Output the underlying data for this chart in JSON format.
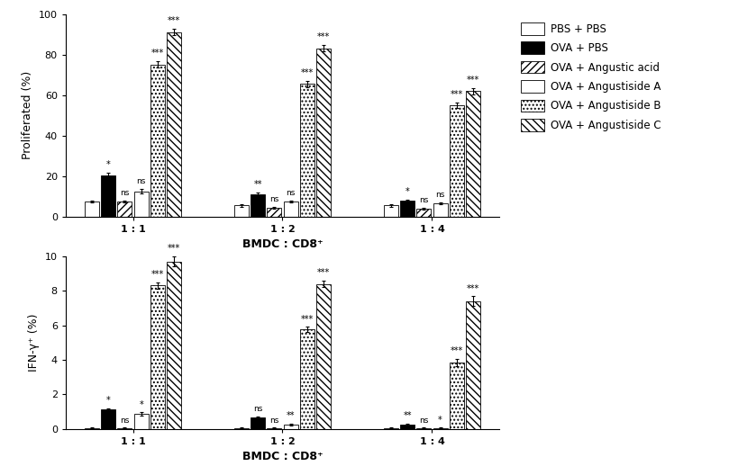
{
  "top_chart": {
    "ylabel": "Proliferated (%)",
    "xlabel": "BMDC : CD8⁺",
    "ylim": [
      0,
      100
    ],
    "yticks": [
      0,
      20,
      40,
      60,
      80,
      100
    ],
    "groups": [
      "1 : 1",
      "1 : 2",
      "1 : 4"
    ],
    "values": [
      [
        7.5,
        20.5,
        7.5,
        12.5,
        75.0,
        91.0
      ],
      [
        5.5,
        11.0,
        4.5,
        7.5,
        65.5,
        83.0
      ],
      [
        5.5,
        8.0,
        4.0,
        6.5,
        55.0,
        62.0
      ]
    ],
    "errors": [
      [
        0.5,
        1.0,
        0.5,
        1.0,
        1.5,
        1.5
      ],
      [
        0.5,
        1.0,
        0.5,
        0.5,
        1.5,
        1.5
      ],
      [
        0.5,
        0.5,
        0.5,
        0.5,
        1.5,
        1.5
      ]
    ],
    "sig_labels": [
      [
        "*",
        "ns",
        "ns",
        "***",
        "***"
      ],
      [
        "**",
        "ns",
        "ns",
        "***",
        "***"
      ],
      [
        "*",
        "ns",
        "ns",
        "***",
        "***"
      ]
    ]
  },
  "bottom_chart": {
    "ylabel": "IFN-γ⁺ (%)",
    "xlabel": "BMDC : CD8⁺",
    "ylim": [
      0,
      10
    ],
    "yticks": [
      0,
      2,
      4,
      6,
      8,
      10
    ],
    "groups": [
      "1 : 1",
      "1 : 2",
      "1 : 4"
    ],
    "values": [
      [
        0.05,
        1.1,
        0.05,
        0.85,
        8.3,
        9.7
      ],
      [
        0.05,
        0.65,
        0.05,
        0.25,
        5.75,
        8.4
      ],
      [
        0.05,
        0.25,
        0.05,
        0.05,
        3.85,
        7.4
      ]
    ],
    "errors": [
      [
        0.03,
        0.1,
        0.03,
        0.1,
        0.2,
        0.3
      ],
      [
        0.03,
        0.08,
        0.03,
        0.05,
        0.15,
        0.2
      ],
      [
        0.03,
        0.05,
        0.03,
        0.03,
        0.2,
        0.3
      ]
    ],
    "sig_labels": [
      [
        "*",
        "ns",
        "*",
        "***",
        "***"
      ],
      [
        "ns",
        "ns",
        "**",
        "***",
        "***"
      ],
      [
        "**",
        "ns",
        "*",
        "***",
        "***"
      ]
    ]
  },
  "legend_labels": [
    "PBS + PBS",
    "OVA + PBS",
    "OVA + Angustic acid",
    "OVA + Angustiside A",
    "OVA + Angustiside B",
    "OVA + Angustiside C"
  ],
  "bar_colors": [
    "white",
    "black",
    "white",
    "white",
    "white",
    "white"
  ],
  "bar_hatches": [
    "",
    "",
    "////",
    "====",
    "....",
    "\\\\\\\\"
  ],
  "bar_edgecolors": [
    "black",
    "black",
    "black",
    "black",
    "black",
    "black"
  ]
}
